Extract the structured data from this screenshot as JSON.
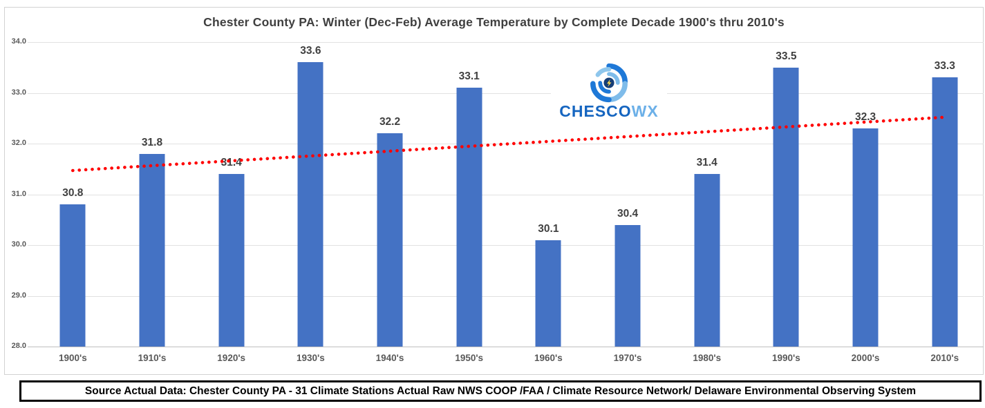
{
  "chart_data": {
    "type": "bar",
    "title": "Chester County PA: Winter (Dec-Feb) Average Temperature by Complete Decade 1900's thru 2010's",
    "categories": [
      "1900's",
      "1910's",
      "1920's",
      "1930's",
      "1940's",
      "1950's",
      "1960's",
      "1970's",
      "1980's",
      "1990's",
      "2000's",
      "2010's"
    ],
    "values": [
      30.8,
      31.8,
      31.4,
      33.6,
      32.2,
      33.1,
      30.1,
      30.4,
      31.4,
      33.5,
      32.3,
      33.3
    ],
    "value_label_decimals": 1,
    "xlabel": "",
    "ylabel": "",
    "ylim": [
      28.0,
      34.0
    ],
    "ytick_step": 1.0,
    "ytick_labels": [
      "34.0",
      "33.0",
      "32.0",
      "31.0",
      "30.0",
      "29.0",
      "28.0"
    ],
    "grid": true,
    "legend": false,
    "bar_color": "#4472C4",
    "trendline": {
      "type": "linear",
      "style": "dotted",
      "color": "#FF0000",
      "start_value": 31.47,
      "end_value": 32.52
    }
  },
  "logo": {
    "name": "CHESCOWX",
    "icon": "hurricane-swirl-icon",
    "text_primary": "CHESCO",
    "text_secondary": "WX",
    "primary_color": "#1565C0",
    "secondary_color": "#6CB0E8"
  },
  "footer": {
    "source_text": "Source Actual Data: Chester County PA - 31 Climate Stations Actual Raw NWS COOP /FAA / Climate Resource Network/ Delaware Environmental Observing System"
  }
}
